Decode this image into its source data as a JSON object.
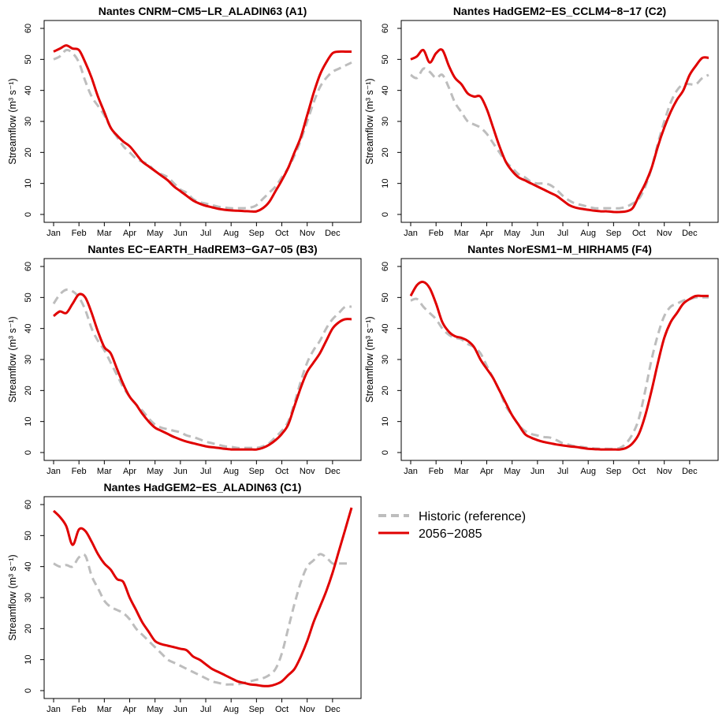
{
  "figure": {
    "legend": {
      "items": [
        {
          "label": "Historic (reference)",
          "color": "#bdbdbd",
          "style": "dashed"
        },
        {
          "label": "2056−2085",
          "color": "#e00000",
          "style": "solid"
        }
      ]
    }
  },
  "chart_data": [
    {
      "type": "line",
      "title": "Nantes CNRM−CM5−LR_ALADIN63 (A1)",
      "ylabel": "Streamflow (m³ s⁻¹)",
      "ylim": [
        0,
        60
      ],
      "yticks": [
        0,
        10,
        20,
        30,
        40,
        50,
        60
      ],
      "xlim": [
        0,
        12
      ],
      "xticks": [
        "Jan",
        "Feb",
        "Mar",
        "Apr",
        "May",
        "Jun",
        "Jul",
        "Aug",
        "Sep",
        "Oct",
        "Nov",
        "Dec"
      ],
      "x": [
        0,
        0.25,
        0.5,
        0.75,
        1,
        1.25,
        1.5,
        1.75,
        2,
        2.25,
        2.5,
        2.75,
        3,
        3.25,
        3.5,
        3.75,
        4,
        4.25,
        4.5,
        4.75,
        5,
        5.25,
        5.5,
        5.75,
        6,
        6.25,
        6.5,
        6.75,
        7,
        7.25,
        7.5,
        7.75,
        8,
        8.25,
        8.5,
        8.75,
        9,
        9.25,
        9.5,
        9.75,
        10,
        10.25,
        10.5,
        10.75,
        11,
        11.25,
        11.5,
        11.75
      ],
      "series": [
        {
          "name": "Historic (reference)",
          "values": [
            50,
            51,
            53,
            52,
            49,
            43,
            38,
            35,
            32,
            28,
            25,
            22,
            20,
            18,
            17,
            16,
            14,
            13,
            12,
            10,
            8,
            7,
            5,
            4,
            3.5,
            3,
            2.5,
            2.2,
            2,
            2,
            2,
            2.2,
            3,
            5,
            7,
            9,
            12,
            15,
            19,
            24,
            30,
            36,
            41,
            44,
            46,
            47,
            48,
            49
          ]
        },
        {
          "name": "2056−2085",
          "values": [
            52.5,
            53.5,
            54.5,
            53.5,
            53,
            49,
            44,
            38,
            33,
            28,
            25.5,
            23.5,
            22,
            19.5,
            17,
            15.5,
            14,
            12.5,
            11,
            9,
            7.5,
            6,
            4.5,
            3.5,
            2.8,
            2.3,
            1.8,
            1.5,
            1.3,
            1.2,
            1.1,
            1,
            1,
            2,
            4,
            7.5,
            11,
            15,
            20,
            25,
            32,
            39,
            45,
            49,
            52,
            52.5,
            52.5,
            52.5
          ]
        }
      ]
    },
    {
      "type": "line",
      "title": "Nantes HadGEM2−ES_CCLM4−8−17 (C2)",
      "ylabel": "Streamflow (m³ s⁻¹)",
      "ylim": [
        0,
        60
      ],
      "yticks": [
        0,
        10,
        20,
        30,
        40,
        50,
        60
      ],
      "xlim": [
        0,
        12
      ],
      "xticks": [
        "Jan",
        "Feb",
        "Mar",
        "Apr",
        "May",
        "Jun",
        "Jul",
        "Aug",
        "Sep",
        "Oct",
        "Nov",
        "Dec"
      ],
      "x": [
        0,
        0.25,
        0.5,
        0.75,
        1,
        1.25,
        1.5,
        1.75,
        2,
        2.25,
        2.5,
        2.75,
        3,
        3.25,
        3.5,
        3.75,
        4,
        4.25,
        4.5,
        4.75,
        5,
        5.25,
        5.5,
        5.75,
        6,
        6.25,
        6.5,
        6.75,
        7,
        7.25,
        7.5,
        7.75,
        8,
        8.25,
        8.5,
        8.75,
        9,
        9.25,
        9.5,
        9.75,
        10,
        10.25,
        10.5,
        10.75,
        11,
        11.25,
        11.5,
        11.75
      ],
      "series": [
        {
          "name": "Historic (reference)",
          "values": [
            45,
            44,
            47,
            46,
            44,
            45,
            41,
            36,
            33,
            30,
            29,
            28,
            26,
            23,
            20,
            17,
            15,
            13,
            12,
            10.5,
            10,
            10,
            9.5,
            8,
            6,
            4.5,
            3.5,
            3,
            2.5,
            2,
            2,
            2,
            2,
            2,
            2.5,
            3.5,
            5,
            9,
            15,
            23,
            30,
            36,
            40,
            42,
            42,
            42,
            44,
            45
          ]
        },
        {
          "name": "2056−2085",
          "values": [
            50,
            51,
            53,
            49,
            52,
            53,
            48,
            44,
            42,
            39,
            38,
            38,
            34,
            28,
            22,
            17,
            14,
            12,
            11,
            10,
            9,
            8,
            7,
            6,
            4.5,
            3,
            2.2,
            1.8,
            1.5,
            1.2,
            1,
            1,
            0.8,
            0.8,
            1,
            2,
            6,
            10,
            15,
            22,
            28,
            33,
            37,
            40,
            45,
            48,
            50.5,
            50.5
          ]
        }
      ]
    },
    {
      "type": "line",
      "title": "Nantes EC−EARTH_HadREM3−GA7−05 (B3)",
      "ylabel": "Streamflow (m³ s⁻¹)",
      "ylim": [
        0,
        60
      ],
      "yticks": [
        0,
        10,
        20,
        30,
        40,
        50,
        60
      ],
      "xlim": [
        0,
        12
      ],
      "xticks": [
        "Jan",
        "Feb",
        "Mar",
        "Apr",
        "May",
        "Jun",
        "Jul",
        "Aug",
        "Sep",
        "Oct",
        "Nov",
        "Dec"
      ],
      "x": [
        0,
        0.25,
        0.5,
        0.75,
        1,
        1.25,
        1.5,
        1.75,
        2,
        2.25,
        2.5,
        2.75,
        3,
        3.25,
        3.5,
        3.75,
        4,
        4.25,
        4.5,
        4.75,
        5,
        5.25,
        5.5,
        5.75,
        6,
        6.25,
        6.5,
        6.75,
        7,
        7.25,
        7.5,
        7.75,
        8,
        8.25,
        8.5,
        8.75,
        9,
        9.25,
        9.5,
        9.75,
        10,
        10.25,
        10.5,
        10.75,
        11,
        11.25,
        11.5,
        11.75
      ],
      "series": [
        {
          "name": "Historic (reference)",
          "values": [
            48,
            51,
            52.5,
            52,
            50,
            46,
            40,
            36,
            33,
            29,
            25,
            21,
            18,
            15.5,
            13.5,
            11,
            9,
            8,
            7.5,
            7,
            6.5,
            5.5,
            5,
            4.3,
            3.5,
            3,
            2.5,
            2,
            1.8,
            1.5,
            1.5,
            1.5,
            1.5,
            2,
            3,
            5,
            7,
            10,
            16,
            23,
            29,
            33,
            36,
            40,
            43,
            45,
            47,
            47
          ]
        },
        {
          "name": "2056−2085",
          "values": [
            44,
            45.5,
            45,
            48,
            51,
            50,
            45,
            39,
            34,
            32,
            27,
            22,
            18,
            15.5,
            12.5,
            10,
            8,
            7,
            6,
            5,
            4.2,
            3.5,
            3,
            2.5,
            2,
            1.7,
            1.5,
            1.2,
            1,
            1,
            1,
            1,
            1,
            1.5,
            2.5,
            4,
            6,
            9,
            15,
            21,
            26,
            29,
            32,
            36,
            40,
            42,
            43,
            43
          ]
        }
      ]
    },
    {
      "type": "line",
      "title": "Nantes NorESM1−M_HIRHAM5 (F4)",
      "ylabel": "Streamflow (m³ s⁻¹)",
      "ylim": [
        0,
        60
      ],
      "yticks": [
        0,
        10,
        20,
        30,
        40,
        50,
        60
      ],
      "xlim": [
        0,
        12
      ],
      "xticks": [
        "Jan",
        "Feb",
        "Mar",
        "Apr",
        "May",
        "Jun",
        "Jul",
        "Aug",
        "Sep",
        "Oct",
        "Nov",
        "Dec"
      ],
      "x": [
        0,
        0.25,
        0.5,
        0.75,
        1,
        1.25,
        1.5,
        1.75,
        2,
        2.25,
        2.5,
        2.75,
        3,
        3.25,
        3.5,
        3.75,
        4,
        4.25,
        4.5,
        4.75,
        5,
        5.25,
        5.5,
        5.75,
        6,
        6.25,
        6.5,
        6.75,
        7,
        7.25,
        7.5,
        7.75,
        8,
        8.25,
        8.5,
        8.75,
        9,
        9.25,
        9.5,
        9.75,
        10,
        10.25,
        10.5,
        10.75,
        11,
        11.25,
        11.5,
        11.75
      ],
      "series": [
        {
          "name": "Historic (reference)",
          "values": [
            49,
            49.5,
            47,
            45,
            43,
            40,
            38,
            37,
            36.5,
            35,
            34,
            32,
            28,
            24,
            20,
            15,
            12,
            9,
            7,
            6,
            5.5,
            5,
            4.8,
            4,
            3,
            2.5,
            2,
            1.8,
            1.5,
            1.3,
            1.2,
            1.2,
            1.2,
            1.5,
            3,
            6,
            11,
            20,
            30,
            38,
            44,
            47,
            48,
            49,
            49.5,
            50,
            50,
            50
          ]
        },
        {
          "name": "2056−2085",
          "values": [
            50.5,
            54,
            55,
            53,
            48,
            42,
            39,
            37.5,
            37,
            36,
            34,
            30,
            27,
            24,
            20,
            16,
            12,
            9,
            6,
            4.8,
            4,
            3.4,
            3,
            2.6,
            2.3,
            2,
            1.8,
            1.5,
            1.2,
            1.1,
            1,
            1,
            1,
            1,
            1.5,
            3,
            6,
            12,
            20,
            29,
            37,
            42,
            45,
            48,
            49.5,
            50.5,
            50.5,
            50.5
          ]
        }
      ]
    },
    {
      "type": "line",
      "title": "Nantes HadGEM2−ES_ALADIN63 (C1)",
      "ylabel": "Streamflow (m³ s⁻¹)",
      "ylim": [
        0,
        60
      ],
      "yticks": [
        0,
        10,
        20,
        30,
        40,
        50,
        60
      ],
      "xlim": [
        0,
        12
      ],
      "xticks": [
        "Jan",
        "Feb",
        "Mar",
        "Apr",
        "May",
        "Jun",
        "Jul",
        "Aug",
        "Sep",
        "Oct",
        "Nov",
        "Dec"
      ],
      "x": [
        0,
        0.25,
        0.5,
        0.75,
        1,
        1.25,
        1.5,
        1.75,
        2,
        2.25,
        2.5,
        2.75,
        3,
        3.25,
        3.5,
        3.75,
        4,
        4.25,
        4.5,
        4.75,
        5,
        5.25,
        5.5,
        5.75,
        6,
        6.25,
        6.5,
        6.75,
        7,
        7.25,
        7.5,
        7.75,
        8,
        8.25,
        8.5,
        8.75,
        9,
        9.25,
        9.5,
        9.75,
        10,
        10.25,
        10.5,
        10.75,
        11,
        11.25,
        11.5,
        11.75
      ],
      "series": [
        {
          "name": "Historic (reference)",
          "values": [
            41,
            40,
            40.5,
            40,
            43,
            43.5,
            37,
            33,
            29,
            27,
            26,
            25,
            23,
            20,
            18,
            16,
            14,
            12,
            10,
            9,
            8,
            7,
            6,
            5,
            4,
            3,
            2.5,
            2,
            2,
            2,
            2.5,
            3,
            3.5,
            4,
            5,
            7,
            12,
            20,
            28,
            35,
            40,
            42,
            44,
            43,
            41,
            41,
            41,
            41
          ]
        },
        {
          "name": "2056−2085",
          "values": [
            58,
            56,
            53,
            47,
            52,
            51.5,
            48,
            44,
            41,
            39,
            36,
            35,
            30,
            26,
            22,
            19,
            16,
            15,
            14.5,
            14,
            13.5,
            13,
            11,
            10,
            8.5,
            7,
            6,
            5,
            4,
            3,
            2.5,
            2,
            1.8,
            1.5,
            1.5,
            2,
            3,
            5,
            7,
            11,
            16,
            22,
            27,
            32,
            38,
            45,
            52,
            59
          ]
        }
      ]
    }
  ]
}
